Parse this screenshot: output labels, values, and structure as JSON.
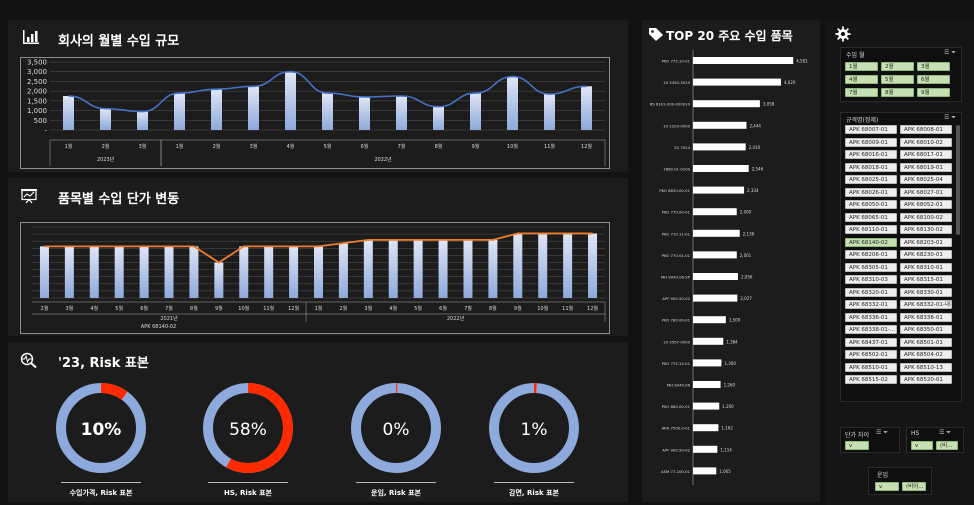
{
  "colors": {
    "bar_top": "#dfe6f5",
    "bar_bottom": "#8ea9db",
    "line_blue": "#4472c4",
    "line_orange": "#ed7d31",
    "donut_base": "#8ea9db",
    "donut_risk": "#ff2a00"
  },
  "panel1": {
    "title": "회사의 월별 수입 규모",
    "icon": "chart-icon"
  },
  "panel2": {
    "title": "품목별 수입 단가 변동",
    "icon": "presentation-icon"
  },
  "panel3": {
    "title": "'23, Risk 표본",
    "icon": "search-pulse-icon"
  },
  "panel4": {
    "title": "TOP 20 주요 수입 품목",
    "icon": "tag-icon"
  },
  "settings_icon": "gear-icon",
  "chart_data": [
    {
      "type": "bar+line",
      "title": "회사의 월별 수입 규모",
      "ylim": [
        0,
        3500
      ],
      "yticks": [
        "3,500",
        "3,000",
        "2,500",
        "2,000",
        "1,500",
        "1,000",
        "500",
        "-"
      ],
      "categories": [
        "1월",
        "2월",
        "3월",
        "1월",
        "2월",
        "3월",
        "4월",
        "5월",
        "6월",
        "7월",
        "8월",
        "9월",
        "10월",
        "11월",
        "12월"
      ],
      "groups": [
        {
          "label": "2023년",
          "from": 0,
          "to": 2
        },
        {
          "label": "2022년",
          "from": 3,
          "to": 14
        }
      ],
      "values": [
        1750,
        1100,
        950,
        1900,
        2100,
        2250,
        3000,
        1900,
        1700,
        1750,
        1200,
        1900,
        2750,
        1850,
        2250
      ]
    },
    {
      "type": "bar+line",
      "title": "품목별 수입 단가 변동",
      "categories": [
        "2월",
        "3월",
        "4월",
        "5월",
        "6월",
        "7월",
        "8월",
        "9월",
        "10월",
        "11월",
        "12월",
        "1월",
        "2월",
        "3월",
        "4월",
        "5월",
        "6월",
        "7월",
        "8월",
        "9월",
        "10월",
        "11월",
        "12월"
      ],
      "groups": [
        {
          "label": "2021년",
          "from": 0,
          "to": 10
        },
        {
          "label": "2022년",
          "from": 11,
          "to": 22
        }
      ],
      "sublabel": "APK 68140-02",
      "values": [
        8,
        8,
        8,
        8,
        8,
        8,
        8,
        5.5,
        8,
        8,
        8,
        8,
        8.5,
        9,
        9,
        9,
        9,
        9,
        9,
        10,
        10,
        10,
        10
      ],
      "ymax": 11
    },
    {
      "type": "bar",
      "title": "TOP 20 주요 수입 품목",
      "categories": [
        "PKO 775.10-01",
        "10 3450-3010",
        "RS 6101-200-030010",
        "10 1203-0000",
        "52 7024",
        "7860.01-0100",
        "PKO 6830.00-01",
        "PKO 770.00-01",
        "PKO 710.11-01",
        "PKO 770.01-01",
        "MH 9040.06-SP",
        "APF 900.50-02",
        "PKO 780.00-01",
        "10 3507-0000",
        "PKO 775.15-01",
        "MH 9040.06",
        "PKO 680.00-01",
        "ARK 7500.0-01",
        "APF 900.50-02",
        "ASM 77.200-01"
      ],
      "values": [
        4581,
        4020,
        3058,
        2444,
        2410,
        2546,
        2334,
        2000,
        2136,
        2001,
        2056,
        2027,
        1500,
        1384,
        1300,
        1260,
        1200,
        1162,
        1114,
        1065
      ],
      "labels": [
        "4,581",
        "4,020",
        "3,058",
        "2,444",
        "2,410",
        "2,546",
        "2,334",
        "2,000",
        "2,136",
        "2,001",
        "2,056",
        "2,027",
        "1,500",
        "1,384",
        "1,300",
        "1,260",
        "1,200",
        "1,162",
        "1,114",
        "1,065"
      ],
      "xmax": 4800
    },
    {
      "type": "pie",
      "donuts": [
        {
          "pct": 10,
          "label": "10%",
          "caption": "수입가격, Risk 표본"
        },
        {
          "pct": 58,
          "label": "58%",
          "caption": "HS, Risk 표본"
        },
        {
          "pct": 0,
          "label": "0%",
          "caption": "운임, Risk 표본"
        },
        {
          "pct": 1,
          "label": "1%",
          "caption": "감면, Risk 표본"
        }
      ]
    }
  ],
  "slicers": {
    "month": {
      "title": "수입 월",
      "items": [
        "1월",
        "2월",
        "3월",
        "4월",
        "5월",
        "6월",
        "7월",
        "8월",
        "9월"
      ]
    },
    "spec": {
      "title": "규격명(정제)",
      "items": [
        "APK 68007-01",
        "APK 68008-01",
        "APK 68009-01",
        "APK 68010-02",
        "APK 68016-01",
        "APK 68017-01",
        "APK 68018-01",
        "APK 68019-01",
        "APK 68025-01",
        "APK 68025-04",
        "APK 68026-01",
        "APK 68027-01",
        "APK 68050-01",
        "APK 68052-01",
        "APK 68065-01",
        "APK 68100-02",
        "APK 68110-01",
        "APK 68130-02",
        "APK 68140-02",
        "APK 68203-01",
        "APK 68206-01",
        "APK 68230-01",
        "APK 68305-01",
        "APK 68310-01",
        "APK 68310-03",
        "APK 68315-01",
        "APK 68320-01",
        "APK 68330-01",
        "APK 68332-01",
        "APK 68332-01-내부",
        "APK 68336-01",
        "APK 68338-01",
        "APK 68338-01-...",
        "APK 68350-01",
        "APK 68437-01",
        "APK 68501-01",
        "APK 68502-01",
        "APK 68504-02",
        "APK 68510-01",
        "APK 68510-13",
        "APK 68515-02",
        "APK 68520-01"
      ]
    },
    "price_diff": {
      "title": "단가 차이",
      "items": [
        "v"
      ]
    },
    "hs": {
      "title": "HS",
      "items": [
        "v",
        "(비..."
      ]
    },
    "freight": {
      "title": "운임",
      "items": [
        "v",
        "(비어..."
      ]
    }
  }
}
